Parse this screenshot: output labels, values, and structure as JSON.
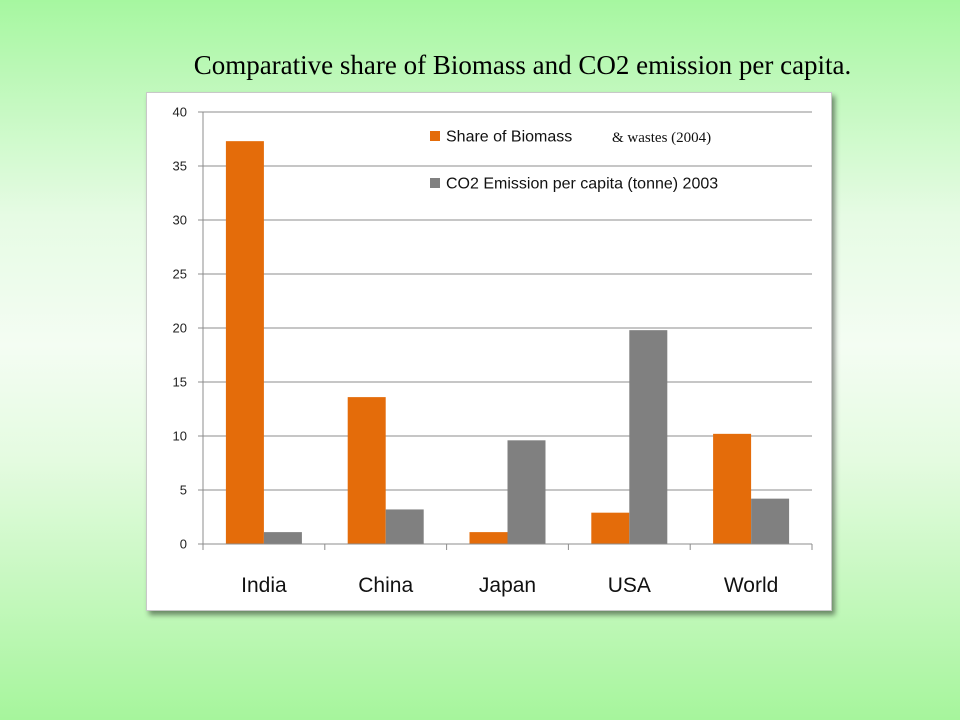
{
  "slide": {
    "title": "Comparative share of Biomass and CO2 emission per capita."
  },
  "chart_data": {
    "type": "bar",
    "categories": [
      "India",
      "China",
      "Japan",
      "USA",
      "World"
    ],
    "series": [
      {
        "name": "Share of Biomass",
        "name_suffix": "& wastes (2004)",
        "color": "#e46c0a",
        "values": [
          37.3,
          13.6,
          1.1,
          2.9,
          10.2
        ]
      },
      {
        "name": "CO2 Emission per capita (tonne) 2003",
        "color": "#808080",
        "values": [
          1.1,
          3.2,
          9.6,
          19.8,
          4.2
        ]
      }
    ],
    "ylim": [
      0,
      40
    ],
    "yticks": [
      0,
      5,
      10,
      15,
      20,
      25,
      30,
      35,
      40
    ],
    "grid": true,
    "legend_position": "top-right",
    "title": "",
    "xlabel": "",
    "ylabel": ""
  }
}
